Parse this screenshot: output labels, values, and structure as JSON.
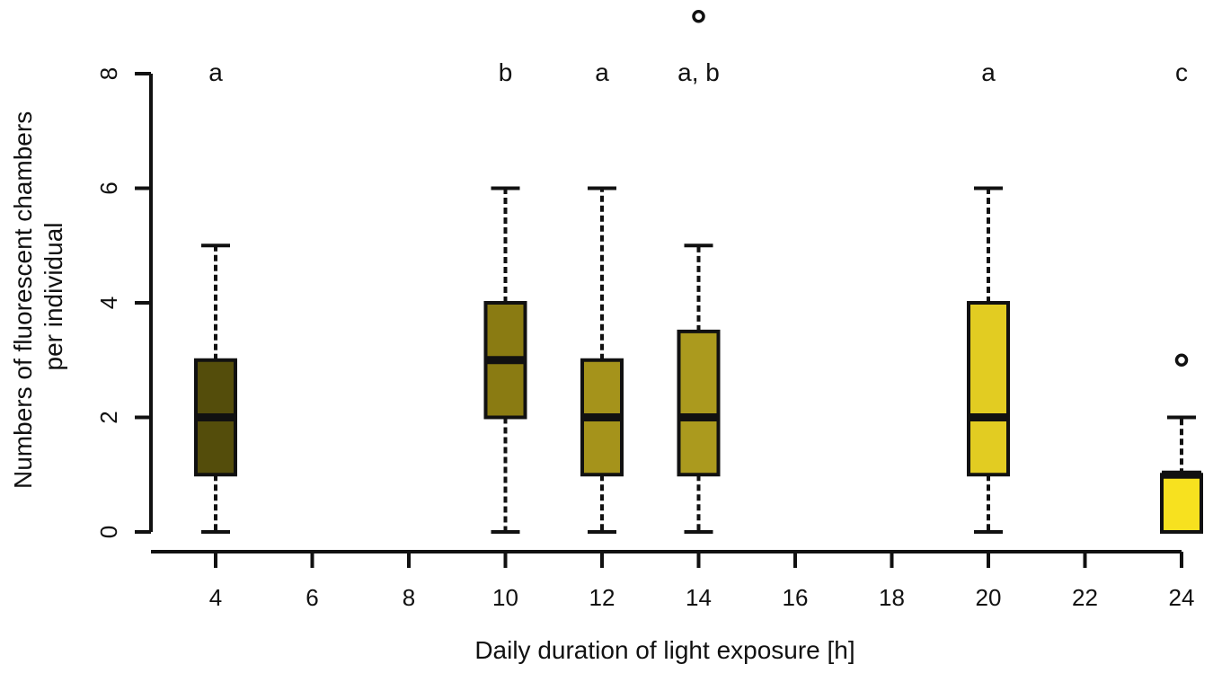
{
  "chart_data": {
    "type": "box",
    "xlabel": "Daily duration of light exposure [h]",
    "ylabel_lines": [
      "Numbers of fluorescent chambers",
      "per individual"
    ],
    "xlim": [
      4,
      24
    ],
    "ylim": [
      0,
      8
    ],
    "x_ticks": [
      4,
      6,
      8,
      10,
      12,
      14,
      16,
      18,
      20,
      22,
      24
    ],
    "y_ticks": [
      0,
      2,
      4,
      6,
      8
    ],
    "grid": false,
    "boxes": [
      {
        "x": 4,
        "whisker_low": 0,
        "q1": 1,
        "median": 2,
        "q3": 3,
        "whisker_high": 5,
        "outliers": [],
        "letter": "a",
        "color": "#544d0b"
      },
      {
        "x": 10,
        "whisker_low": 0,
        "q1": 2,
        "median": 3,
        "q3": 4,
        "whisker_high": 6,
        "outliers": [],
        "letter": "b",
        "color": "#8a7b12"
      },
      {
        "x": 12,
        "whisker_low": 0,
        "q1": 1,
        "median": 2,
        "q3": 3,
        "whisker_high": 6,
        "outliers": [],
        "letter": "a",
        "color": "#a5931b"
      },
      {
        "x": 14,
        "whisker_low": 0,
        "q1": 1,
        "median": 2,
        "q3": 3.5,
        "whisker_high": 5,
        "outliers": [
          9
        ],
        "letter": "a, b",
        "color": "#ab9a1e"
      },
      {
        "x": 20,
        "whisker_low": 0,
        "q1": 1,
        "median": 2,
        "q3": 4,
        "whisker_high": 6,
        "outliers": [],
        "letter": "a",
        "color": "#e2cc22"
      },
      {
        "x": 24,
        "whisker_low": 0,
        "q1": 0,
        "median": 1,
        "q3": 1,
        "whisker_high": 2,
        "outliers": [
          3
        ],
        "letter": "c",
        "color": "#f7e11f"
      }
    ]
  }
}
